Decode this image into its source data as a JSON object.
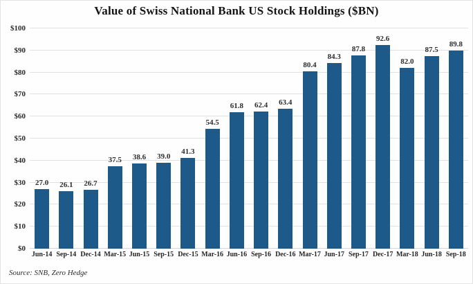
{
  "title": "Value of Swiss National Bank US Stock Holdings ($BN)",
  "source_note": "Source: SNB, Zero Hedge",
  "colors": {
    "bar": "#1e5a89",
    "gridline": "#e1e1e1",
    "title_text": "#141414",
    "label_text": "#2b2b2b",
    "background": "#fefefe"
  },
  "chart_data": {
    "type": "bar",
    "title": "Value of Swiss National Bank US Stock Holdings ($BN)",
    "categories": [
      "Jun-14",
      "Sep-14",
      "Dec-14",
      "Mar-15",
      "Jun-15",
      "Sep-15",
      "Dec-15",
      "Mar-16",
      "Jun-16",
      "Sep-16",
      "Dec-16",
      "Mar-17",
      "Jun-17",
      "Sep-17",
      "Dec-17",
      "Mar-18",
      "Jun-18",
      "Sep-18"
    ],
    "values": [
      27.0,
      26.1,
      26.7,
      37.5,
      38.6,
      39.0,
      41.3,
      54.5,
      61.8,
      62.4,
      63.4,
      80.4,
      84.3,
      87.8,
      92.6,
      82.0,
      87.5,
      89.8
    ],
    "value_labels_shown": true,
    "value_label_decimals": 1,
    "xlabel": "",
    "ylabel": "",
    "ylim": [
      0,
      100
    ],
    "ytick_step": 10,
    "ytick_prefix": "$",
    "ytick_labels": [
      "$0",
      "$10",
      "$20",
      "$30",
      "$40",
      "$50",
      "$60",
      "$70",
      "$80",
      "$90",
      "$100"
    ],
    "grid": "horizontal",
    "legend": "none",
    "source": "Source: SNB, Zero Hedge"
  }
}
